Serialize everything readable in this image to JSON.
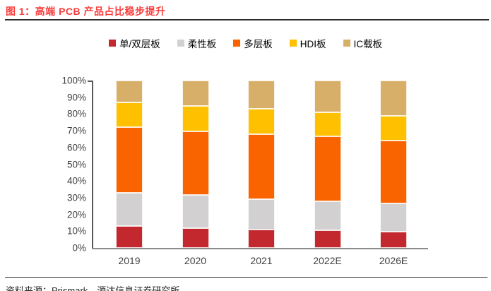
{
  "header": {
    "title": "图 1：高端 PCB 产品占比稳步提升"
  },
  "footer": {
    "source": "资料来源：Prismark，源达信息证券研究所"
  },
  "colors": {
    "title_red": "#f83e3e",
    "axis_text": "#3f3f3f",
    "axis_line": "#595959",
    "baseline": "#8c8c8c"
  },
  "chart_data": {
    "type": "bar",
    "stacked": true,
    "stacked_100_percent": true,
    "title": "高端 PCB 产品占比稳步提升",
    "categories": [
      "2019",
      "2020",
      "2021",
      "2022E",
      "2026E"
    ],
    "series": [
      {
        "name": "单/双层板",
        "color": "#c2282e",
        "values": [
          13,
          12,
          11,
          10.5,
          9.5
        ]
      },
      {
        "name": "柔性板",
        "color": "#d2d0d0",
        "values": [
          20,
          19.5,
          18,
          17.5,
          17
        ]
      },
      {
        "name": "多层板",
        "color": "#f96300",
        "values": [
          39,
          38,
          39,
          38.5,
          37.5
        ]
      },
      {
        "name": "HDI板",
        "color": "#ffc000",
        "values": [
          15,
          15.5,
          15,
          14.5,
          15
        ]
      },
      {
        "name": "IC载板",
        "color": "#d8af68",
        "values": [
          13,
          15,
          17,
          19,
          21
        ]
      }
    ],
    "xlabel": "",
    "ylabel": "",
    "ylim": [
      0,
      100
    ],
    "ytick_step": 10,
    "ytick_suffix": "%",
    "legend_position": "top-center",
    "grid": false
  }
}
